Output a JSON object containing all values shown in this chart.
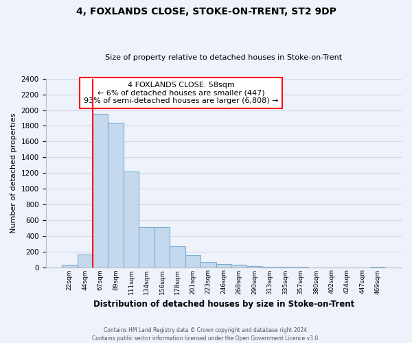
{
  "title": "4, FOXLANDS CLOSE, STOKE-ON-TRENT, ST2 9DP",
  "subtitle": "Size of property relative to detached houses in Stoke-on-Trent",
  "xlabel": "Distribution of detached houses by size in Stoke-on-Trent",
  "ylabel": "Number of detached properties",
  "bar_labels": [
    "22sqm",
    "44sqm",
    "67sqm",
    "89sqm",
    "111sqm",
    "134sqm",
    "156sqm",
    "178sqm",
    "201sqm",
    "223sqm",
    "246sqm",
    "268sqm",
    "290sqm",
    "313sqm",
    "335sqm",
    "357sqm",
    "380sqm",
    "402sqm",
    "424sqm",
    "447sqm",
    "469sqm"
  ],
  "bar_values": [
    30,
    160,
    1950,
    1840,
    1220,
    510,
    510,
    265,
    150,
    65,
    40,
    30,
    15,
    5,
    2,
    1,
    0,
    0,
    0,
    0,
    5
  ],
  "bar_color": "#c5d9ee",
  "bar_edge_color": "#7aafd4",
  "red_line_x": 1.5,
  "marker_line_color": "red",
  "annotation_line1": "4 FOXLANDS CLOSE: 58sqm",
  "annotation_line2": "← 6% of detached houses are smaller (447)",
  "annotation_line3": "93% of semi-detached houses are larger (6,808) →",
  "annotation_box_color": "white",
  "annotation_box_edge_color": "red",
  "ylim": [
    0,
    2400
  ],
  "yticks": [
    0,
    200,
    400,
    600,
    800,
    1000,
    1200,
    1400,
    1600,
    1800,
    2000,
    2200,
    2400
  ],
  "grid_color": "#d0d8e8",
  "background_color": "#eef2fa",
  "footer_line1": "Contains HM Land Registry data © Crown copyright and database right 2024.",
  "footer_line2": "Contains public sector information licensed under the Open Government Licence v3.0."
}
